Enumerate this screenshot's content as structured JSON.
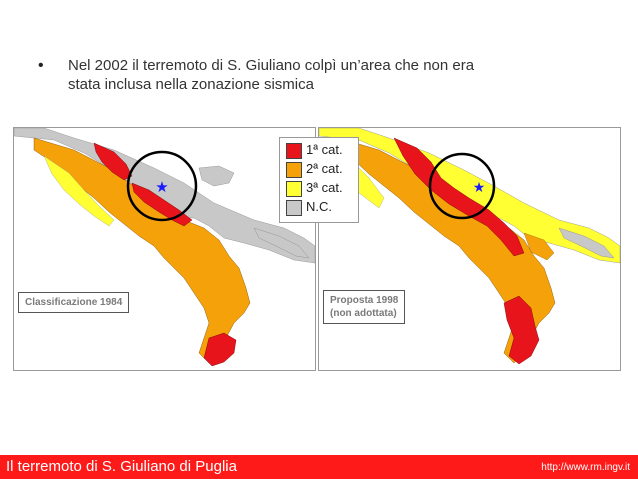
{
  "slide": {
    "bullet_line1": "Nel 2002 il terremoto di S. Giuliano colpì un’area che non era",
    "bullet_line2": "stata inclusa nella zonazione sismica"
  },
  "maps": {
    "left_label": "Classificazione 1984",
    "right_label_line1": "Proposta 1998",
    "right_label_line2": "(non adottata)"
  },
  "legend": [
    {
      "label": "1ª cat.",
      "color": "#e8141c"
    },
    {
      "label": "2ª cat.",
      "color": "#f5a10a"
    },
    {
      "label": "3ª cat.",
      "color": "#ffff33"
    },
    {
      "label": "N.C.",
      "color": "#c8c8c8"
    }
  ],
  "colors": {
    "cat1": "#e8141c",
    "cat2": "#f5a10a",
    "cat3": "#ffff33",
    "nc": "#c8c8c8",
    "footer": "#ff1a1a",
    "epicenter": "#1a1aff"
  },
  "footer": {
    "title": "Il terremoto di S. Giuliano di Puglia",
    "url": "http://www.rm.ingv.it"
  }
}
